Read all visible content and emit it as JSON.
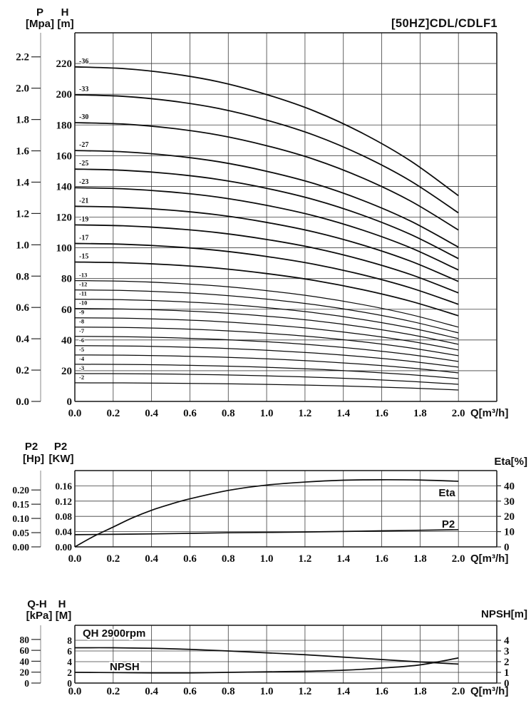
{
  "figure": {
    "title": "[50HZ]CDL/CDLF1"
  },
  "q_axis": {
    "label": "Q[m³/h]",
    "ticks": [
      "0.0",
      "0.2",
      "0.4",
      "0.6",
      "0.8",
      "1.0",
      "1.2",
      "1.4",
      "1.6",
      "1.8",
      "2.0"
    ],
    "min": 0,
    "max": 2.2,
    "grid_step": 0.2
  },
  "chart_data": [
    {
      "id": "head_capacity",
      "type": "line",
      "title": "[50HZ]CDL/CDLF1",
      "y_pressure_scale": {
        "name": "P",
        "unit": "[Mpa]",
        "ticks": [
          "2.2",
          "2.0",
          "1.8",
          "1.6",
          "1.4",
          "1.2",
          "1.0",
          "0.8",
          "0.6",
          "0.4",
          "0.2",
          "0.0"
        ]
      },
      "y_head_scale": {
        "name": "H",
        "unit": "[m]",
        "ticks": [
          "220",
          "200",
          "180",
          "160",
          "140",
          "120",
          "100",
          "80",
          "60",
          "40",
          "20",
          "0"
        ],
        "max": 240,
        "grid_step": 20
      },
      "stages": [
        2,
        3,
        4,
        5,
        6,
        7,
        8,
        9,
        10,
        11,
        12,
        13,
        15,
        17,
        19,
        21,
        23,
        25,
        27,
        30,
        33,
        36
      ],
      "stage_labels": [
        "-2",
        "-3",
        "-4",
        "-5",
        "-6",
        "-7",
        "-8",
        "-9",
        "-10",
        "-11",
        "-12",
        "-13",
        "-15",
        "-17",
        "-19",
        "-21",
        "-23",
        "-25",
        "-27",
        "-30",
        "-33",
        "-36"
      ],
      "q_samples": [
        0,
        0.25,
        0.5,
        0.75,
        1.0,
        1.25,
        1.5,
        1.75,
        2.0
      ],
      "head_per_stage_m": [
        6.05,
        6.02,
        5.93,
        5.78,
        5.55,
        5.25,
        4.85,
        4.35,
        3.72
      ],
      "curve_q_end": 2.0
    },
    {
      "id": "power_efficiency",
      "type": "line",
      "y_left_hp": {
        "name": "P2",
        "unit": "[Hp]",
        "ticks": [
          "0.20",
          "0.15",
          "0.10",
          "0.05",
          "0.00"
        ]
      },
      "y_left_kw": {
        "name": "P2",
        "unit": "[KW]",
        "ticks": [
          "0.16",
          "0.12",
          "0.08",
          "0.04",
          "0.00"
        ],
        "max": 0.2,
        "grid_step": 0.04
      },
      "y_right": {
        "label": "Eta[%]",
        "ticks": [
          "40",
          "30",
          "20",
          "10",
          "0"
        ],
        "max": 50
      },
      "series": [
        {
          "name": "Eta",
          "axis": "right",
          "q": [
            0,
            0.1,
            0.2,
            0.3,
            0.4,
            0.5,
            0.6,
            0.8,
            1.0,
            1.2,
            1.4,
            1.6,
            1.8,
            2.0
          ],
          "values": [
            0,
            7,
            13,
            19,
            24,
            28,
            31.5,
            37,
            40.5,
            42.5,
            43.7,
            44,
            43.8,
            43
          ]
        },
        {
          "name": "P2",
          "axis": "left",
          "q": [
            0,
            0.4,
            0.8,
            1.2,
            1.6,
            2.0
          ],
          "values": [
            0.032,
            0.034,
            0.037,
            0.039,
            0.042,
            0.045
          ]
        }
      ]
    },
    {
      "id": "qh_npsh",
      "type": "line",
      "y_left_kpa": {
        "name": "Q-H",
        "unit": "[kPa]",
        "ticks": [
          "80",
          "60",
          "40",
          "20",
          "0"
        ]
      },
      "y_left_m": {
        "name": "H",
        "unit": "[M]",
        "ticks": [
          "8",
          "6",
          "4",
          "2",
          "0"
        ],
        "max": 10.8,
        "grid_step": 2
      },
      "y_right": {
        "label": "NPSH[m]",
        "ticks": [
          "4",
          "3",
          "2",
          "1",
          "0"
        ],
        "max": 5.4
      },
      "series": [
        {
          "name": "QH 2900rpm",
          "axis": "left",
          "q": [
            0,
            0.2,
            0.4,
            0.6,
            0.8,
            1.0,
            1.2,
            1.4,
            1.6,
            1.8,
            2.0
          ],
          "values": [
            6.6,
            6.6,
            6.5,
            6.3,
            6.0,
            5.65,
            5.3,
            4.85,
            4.4,
            3.95,
            3.55
          ]
        },
        {
          "name": "NPSH",
          "axis": "right",
          "q": [
            0,
            0.2,
            0.4,
            0.6,
            0.8,
            1.0,
            1.2,
            1.4,
            1.6,
            1.8,
            2.0
          ],
          "values": [
            1.0,
            0.98,
            0.95,
            0.95,
            1.0,
            1.05,
            1.1,
            1.2,
            1.4,
            1.7,
            2.35
          ]
        }
      ]
    }
  ]
}
